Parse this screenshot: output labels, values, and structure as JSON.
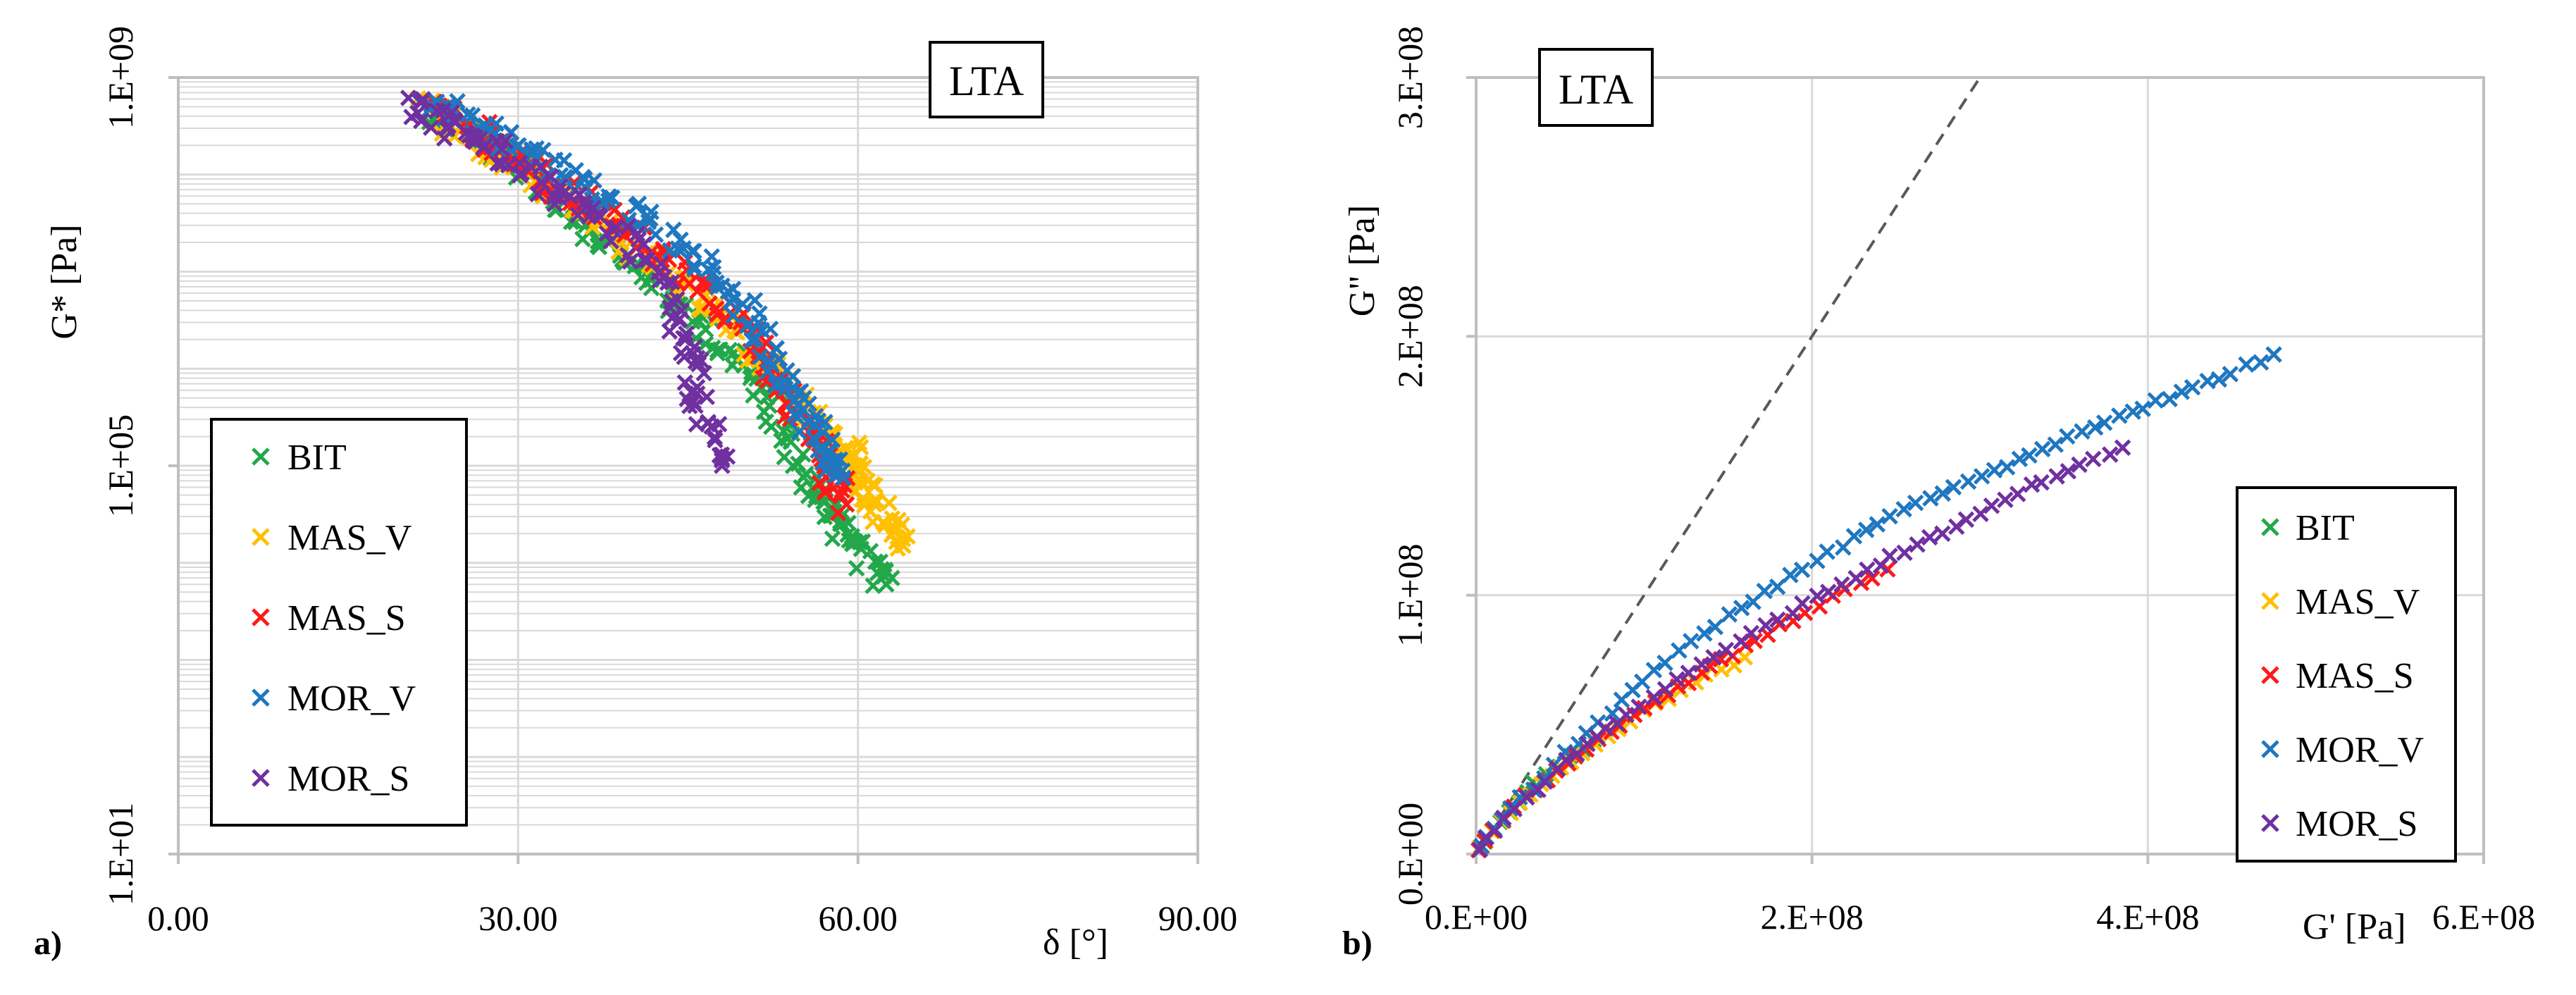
{
  "colors": {
    "BIT": "#22a84a",
    "MAS_V": "#ffc000",
    "MAS_S": "#ff1a1a",
    "MOR_V": "#1f77c0",
    "MOR_S": "#7030a0",
    "grid": "#d9d9d9",
    "axis": "#bfbfbf",
    "dash": "#595959"
  },
  "chart_data": [
    {
      "panel_label": "a)",
      "type": "scatter",
      "title": "LTA",
      "xlabel": "δ [°]",
      "ylabel": "G* [Pa]",
      "xlim": [
        0,
        90
      ],
      "ylim_log10": [
        1,
        9
      ],
      "x_ticks": [
        {
          "value": 0,
          "label": "0.00"
        },
        {
          "value": 30,
          "label": "30.00"
        },
        {
          "value": 60,
          "label": "60.00"
        },
        {
          "value": 90,
          "label": "90.00"
        }
      ],
      "y_ticks": [
        {
          "value": 10,
          "label": "1.E+01"
        },
        {
          "value": 100000,
          "label": "1.E+05"
        },
        {
          "value": 1000000000,
          "label": "1.E+09"
        }
      ],
      "grid": "log-minor",
      "legend_position": "bottom-left",
      "series": [
        {
          "name": "BIT",
          "marker": "×",
          "points": [
            [
              22,
              500000000
            ],
            [
              26,
              250000000
            ],
            [
              30,
              120000000
            ],
            [
              34,
              50000000
            ],
            [
              38,
              20000000
            ],
            [
              42,
              8000000
            ],
            [
              46,
              3000000
            ],
            [
              50,
              1000000
            ],
            [
              53,
              300000
            ],
            [
              56,
              60000
            ],
            [
              58,
              30000
            ],
            [
              60,
              15000
            ],
            [
              62.5,
              6000
            ]
          ]
        },
        {
          "name": "MAS_V",
          "marker": "×",
          "points": [
            [
              22,
              500000000
            ],
            [
              26,
              230000000
            ],
            [
              30,
              120000000
            ],
            [
              35,
              50000000
            ],
            [
              40,
              18000000
            ],
            [
              45,
              6000000
            ],
            [
              50,
              2000000
            ],
            [
              54,
              600000
            ],
            [
              57,
              200000
            ],
            [
              59,
              150000
            ],
            [
              60,
              80000
            ],
            [
              62,
              30000
            ],
            [
              64,
              15000
            ]
          ]
        },
        {
          "name": "MAS_S",
          "marker": "×",
          "points": [
            [
              22,
              500000000
            ],
            [
              27,
              250000000
            ],
            [
              31,
              120000000
            ],
            [
              36,
              50000000
            ],
            [
              41,
              20000000
            ],
            [
              46,
              7000000
            ],
            [
              50,
              2500000
            ],
            [
              53,
              800000
            ],
            [
              55,
              300000
            ],
            [
              57,
              100000
            ],
            [
              59,
              40000
            ]
          ]
        },
        {
          "name": "MOR_V",
          "marker": "×",
          "points": [
            [
              22,
              600000000
            ],
            [
              26,
              350000000
            ],
            [
              31,
              180000000
            ],
            [
              36,
              80000000
            ],
            [
              41,
              35000000
            ],
            [
              46,
              12000000
            ],
            [
              50,
              4000000
            ],
            [
              53,
              1000000
            ],
            [
              55,
              400000
            ],
            [
              57,
              150000
            ],
            [
              58,
              80000
            ]
          ]
        },
        {
          "name": "MOR_S",
          "marker": "×",
          "points": [
            [
              21,
              500000000
            ],
            [
              25,
              280000000
            ],
            [
              29,
              150000000
            ],
            [
              34,
              60000000
            ],
            [
              39,
              25000000
            ],
            [
              43,
              6000000
            ],
            [
              45,
              1500000
            ],
            [
              46,
              400000
            ],
            [
              48,
              100000
            ]
          ]
        }
      ]
    },
    {
      "panel_label": "b)",
      "type": "scatter",
      "title": "LTA",
      "xlabel": "G' [Pa]",
      "ylabel": "G\" [Pa]",
      "xlim": [
        0,
        600000000
      ],
      "ylim": [
        0,
        300000000
      ],
      "x_ticks": [
        {
          "value": 0,
          "label": "0.E+00"
        },
        {
          "value": 200000000,
          "label": "2.E+08"
        },
        {
          "value": 400000000,
          "label": "4.E+08"
        },
        {
          "value": 600000000,
          "label": "6.E+08"
        }
      ],
      "y_ticks": [
        {
          "value": 0,
          "label": "0.E+00"
        },
        {
          "value": 100000000,
          "label": "1.E+08"
        },
        {
          "value": 200000000,
          "label": "2.E+08"
        },
        {
          "value": 300000000,
          "label": "3.E+08"
        }
      ],
      "grid": true,
      "legend_position": "right",
      "reference_line": {
        "style": "dashed",
        "from": [
          0,
          0
        ],
        "to": [
          300000000,
          300000000
        ]
      },
      "series": [
        {
          "name": "BIT",
          "marker": "×",
          "points": [
            [
              2000000,
              2000000
            ],
            [
              5000000,
              5000000
            ],
            [
              10000000,
              9000000
            ],
            [
              20000000,
              17000000
            ],
            [
              35000000,
              27000000
            ],
            [
              50000000,
              34000000
            ],
            [
              70000000,
              44000000
            ]
          ]
        },
        {
          "name": "MAS_V",
          "marker": "×",
          "points": [
            [
              2000000,
              2000000
            ],
            [
              10000000,
              9000000
            ],
            [
              25000000,
              19000000
            ],
            [
              45000000,
              30000000
            ],
            [
              70000000,
              42000000
            ],
            [
              100000000,
              55000000
            ],
            [
              130000000,
              66000000
            ],
            [
              160000000,
              76000000
            ]
          ]
        },
        {
          "name": "MAS_S",
          "marker": "×",
          "points": [
            [
              2000000,
              2000000
            ],
            [
              10000000,
              9000000
            ],
            [
              30000000,
              22000000
            ],
            [
              60000000,
              38000000
            ],
            [
              100000000,
              56000000
            ],
            [
              140000000,
              72000000
            ],
            [
              180000000,
              88000000
            ],
            [
              220000000,
              102000000
            ],
            [
              245000000,
              110000000
            ]
          ]
        },
        {
          "name": "MOR_V",
          "marker": "×",
          "points": [
            [
              3000000,
              3000000
            ],
            [
              10000000,
              10000000
            ],
            [
              20000000,
              17000000
            ],
            [
              40000000,
              30000000
            ],
            [
              60000000,
              43000000
            ],
            [
              80000000,
              55000000
            ],
            [
              100000000,
              67000000
            ],
            [
              120000000,
              78000000
            ],
            [
              150000000,
              92000000
            ],
            [
              180000000,
              104000000
            ],
            [
              210000000,
              116000000
            ],
            [
              240000000,
              128000000
            ],
            [
              270000000,
              138000000
            ],
            [
              300000000,
              146000000
            ],
            [
              330000000,
              154000000
            ],
            [
              360000000,
              163000000
            ],
            [
              390000000,
              171000000
            ],
            [
              420000000,
              178000000
            ],
            [
              450000000,
              186000000
            ],
            [
              475000000,
              193000000
            ]
          ]
        },
        {
          "name": "MOR_S",
          "marker": "×",
          "points": [
            [
              2000000,
              2000000
            ],
            [
              10000000,
              9000000
            ],
            [
              30000000,
              22000000
            ],
            [
              60000000,
              39000000
            ],
            [
              90000000,
              54000000
            ],
            [
              120000000,
              67000000
            ],
            [
              150000000,
              79000000
            ],
            [
              180000000,
              91000000
            ],
            [
              210000000,
              102000000
            ],
            [
              240000000,
              112000000
            ],
            [
              270000000,
              122000000
            ],
            [
              300000000,
              132000000
            ],
            [
              330000000,
              142000000
            ],
            [
              360000000,
              150000000
            ],
            [
              385000000,
              157000000
            ]
          ]
        }
      ]
    }
  ]
}
